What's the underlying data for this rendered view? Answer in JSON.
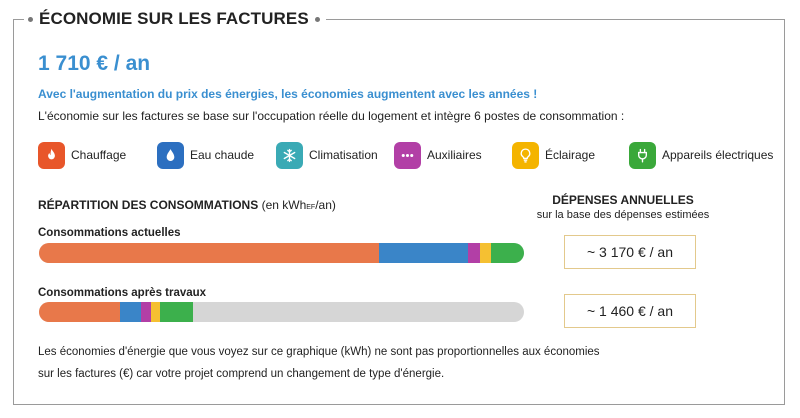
{
  "section": {
    "title": "ÉCONOMIE SUR LES FACTURES"
  },
  "savings": {
    "value": "1 710 € / an"
  },
  "headline": "Avec l'augmentation du prix des énergies, les économies augmentent avec les années !",
  "intro": "L'économie sur les factures se base sur l'occupation réelle du logement et intègre 6 postes de consommation :",
  "posts": [
    {
      "label": "Chauffage",
      "icon": "flame-icon",
      "color": "#e8562a"
    },
    {
      "label": "Eau chaude",
      "icon": "drop-icon",
      "color": "#2c6fc0"
    },
    {
      "label": "Climatisation",
      "icon": "snowflake-icon",
      "color": "#3aaab5"
    },
    {
      "label": "Auxiliaires",
      "icon": "dots-icon",
      "color": "#b23fa6"
    },
    {
      "label": "Éclairage",
      "icon": "lightbulb-icon",
      "color": "#f4b400"
    },
    {
      "label": "Appareils électriques",
      "icon": "plug-icon",
      "color": "#3aa83a"
    }
  ],
  "repartition": {
    "title": "RÉPARTITION DES CONSOMMATIONS",
    "unit_pre": "(en kWh",
    "unit_sub": "EF",
    "unit_post": "/an)"
  },
  "depenses": {
    "title": "DÉPENSES ANNUELLES",
    "subtitle": "sur la base des dépenses estimées"
  },
  "bars": [
    {
      "label": "Consommations actuelles",
      "amount": "~ 3 170 € / an",
      "segments": [
        {
          "post": "Chauffage",
          "fraction": 0.7,
          "color": "#e8784a"
        },
        {
          "post": "Eau chaude",
          "fraction": 0.185,
          "color": "#3a85c8"
        },
        {
          "post": "Auxiliaires",
          "fraction": 0.025,
          "color": "#b23fa6"
        },
        {
          "post": "Éclairage",
          "fraction": 0.022,
          "color": "#f5c032"
        },
        {
          "post": "Appareils électriques",
          "fraction": 0.068,
          "color": "#3cb04c"
        }
      ]
    },
    {
      "label": "Consommations après travaux",
      "amount": "~ 1 460 € / an",
      "segments": [
        {
          "post": "Chauffage",
          "fraction": 0.168,
          "color": "#e8784a"
        },
        {
          "post": "Eau chaude",
          "fraction": 0.042,
          "color": "#3a85c8"
        },
        {
          "post": "Auxiliaires",
          "fraction": 0.02,
          "color": "#b23fa6"
        },
        {
          "post": "Éclairage",
          "fraction": 0.02,
          "color": "#f5c032"
        },
        {
          "post": "Appareils électriques",
          "fraction": 0.068,
          "color": "#3cb04c"
        }
      ]
    }
  ],
  "footnote": [
    "Les économies d'énergie que vous voyez sur ce graphique (kWh) ne sont pas proportionnelles aux économies",
    "sur les factures (€) car votre projet comprend un changement de type d'énergie."
  ]
}
